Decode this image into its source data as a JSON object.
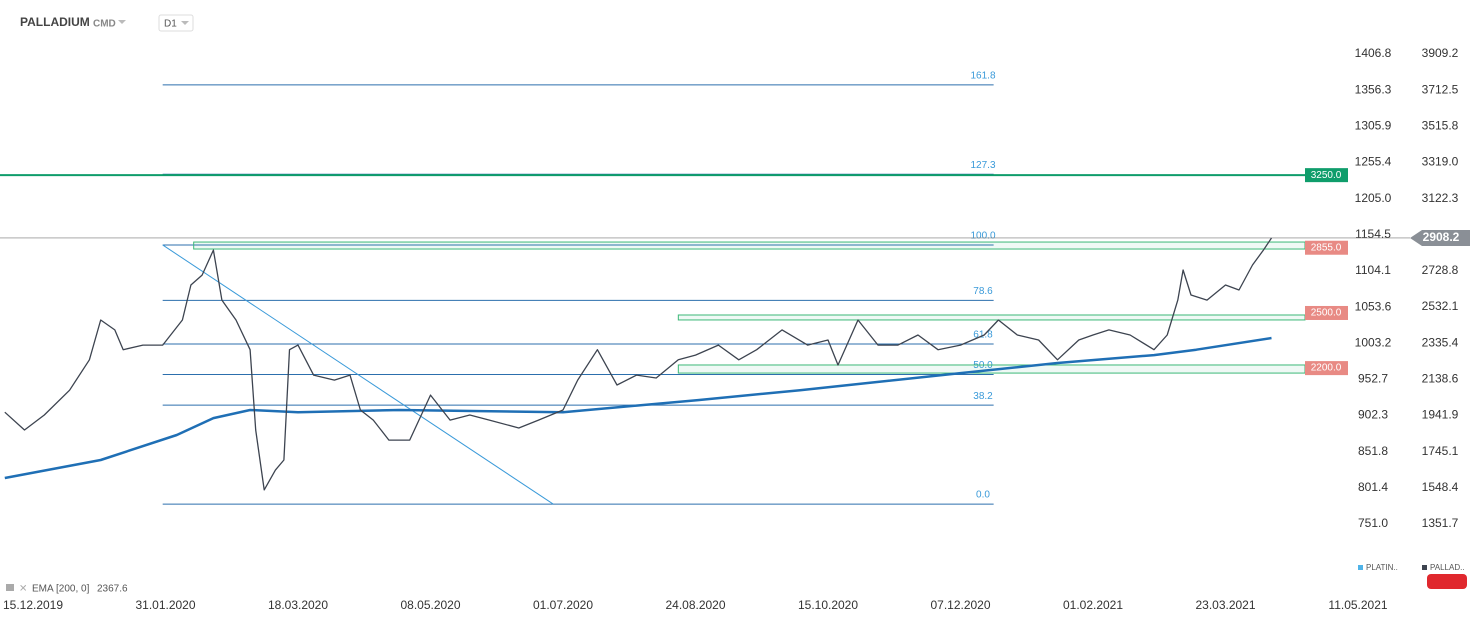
{
  "header": {
    "symbol": "PALLADIUM",
    "market": "CMD",
    "timeframe": "D1"
  },
  "chart_data": {
    "type": "line",
    "x": [
      "2019-12-05",
      "2019-12-12",
      "2019-12-19",
      "2019-12-28",
      "2020-01-04",
      "2020-01-08",
      "2020-01-13",
      "2020-01-16",
      "2020-01-23",
      "2020-01-30",
      "2020-02-06",
      "2020-02-09",
      "2020-02-13",
      "2020-02-17",
      "2020-02-20",
      "2020-02-25",
      "2020-03-01",
      "2020-03-03",
      "2020-03-06",
      "2020-03-10",
      "2020-03-13",
      "2020-03-15",
      "2020-03-18",
      "2020-03-24",
      "2020-04-01",
      "2020-04-07",
      "2020-04-11",
      "2020-04-16",
      "2020-04-22",
      "2020-04-30",
      "2020-05-08",
      "2020-05-16",
      "2020-05-24",
      "2020-06-01",
      "2020-06-13",
      "2020-06-21",
      "2020-07-01",
      "2020-07-07",
      "2020-07-15",
      "2020-07-23",
      "2020-07-31",
      "2020-08-08",
      "2020-08-17",
      "2020-08-24",
      "2020-09-02",
      "2020-09-10",
      "2020-09-17",
      "2020-09-27",
      "2020-10-07",
      "2020-10-15",
      "2020-10-19",
      "2020-10-27",
      "2020-11-04",
      "2020-11-12",
      "2020-11-20",
      "2020-11-28",
      "2020-12-07",
      "2020-12-17",
      "2020-12-23",
      "2020-12-31",
      "2021-01-09",
      "2021-01-17",
      "2021-01-26",
      "2021-02-01",
      "2021-02-07",
      "2021-02-15",
      "2021-02-24",
      "2021-03-01",
      "2021-03-05",
      "2021-03-07",
      "2021-03-10",
      "2021-03-16",
      "2021-03-23",
      "2021-03-28",
      "2021-04-02",
      "2021-04-06",
      "2021-04-09"
    ],
    "series": [
      {
        "color": "#3d4450",
        "values": [
          1960,
          1863,
          1945,
          2080,
          2245,
          2462,
          2408,
          2300,
          2325,
          2325,
          2462,
          2652,
          2706,
          2842,
          2570,
          2462,
          2300,
          1863,
          1537,
          1645,
          1700,
          2300,
          2325,
          2162,
          2135,
          2162,
          1972,
          1917,
          1808,
          1808,
          2053,
          1917,
          1945,
          1917,
          1874,
          1917,
          1972,
          2135,
          2300,
          2108,
          2162,
          2146,
          2245,
          2271,
          2325,
          2245,
          2300,
          2408,
          2325,
          2353,
          2217,
          2462,
          2325,
          2325,
          2380,
          2300,
          2325,
          2380,
          2462,
          2380,
          2353,
          2245,
          2353,
          2380,
          2408,
          2380,
          2300,
          2380,
          2570,
          2734,
          2598,
          2570,
          2652,
          2625,
          2761,
          2842,
          2908.2
        ]
      }
    ],
    "indicator": {
      "name": "EMA",
      "params": "[200, 0]",
      "last": 2367.6,
      "color": "#1f6fb5",
      "x": [
        "2019-12-05",
        "2020-01-08",
        "2020-02-04",
        "2020-02-17",
        "2020-03-01",
        "2020-03-18",
        "2020-04-26",
        "2020-07-01",
        "2020-08-25",
        "2020-10-04",
        "2020-12-07",
        "2021-01-17",
        "2021-02-24",
        "2021-03-12",
        "2021-04-09"
      ],
      "values": [
        1602,
        1700,
        1836,
        1928,
        1972,
        1960,
        1972,
        1960,
        2026,
        2080,
        2173,
        2228,
        2271,
        2300,
        2364
      ]
    },
    "current_price": 2908.2,
    "levels": [
      {
        "value": 3250,
        "label": "3250.0",
        "color": "#0f9d6b"
      },
      {
        "value": 2855,
        "label": "2855.0",
        "color": "#e88a84",
        "zone": [
          2848,
          2886
        ],
        "zone_start": "2020-02-10"
      },
      {
        "value": 2500,
        "label": "2500.0",
        "color": "#e88a84",
        "zone": [
          2462,
          2489
        ],
        "zone_start": "2020-08-17"
      },
      {
        "value": 2200,
        "label": "2200.0",
        "color": "#e88a84",
        "zone": [
          2173,
          2217
        ],
        "zone_start": "2020-08-17"
      }
    ],
    "fibonacci": {
      "low": 1460,
      "high": 2870,
      "start": "2020-01-30",
      "end": "2020-12-21",
      "levels": [
        161.8,
        127.3,
        {
          "value": 100,
          "label": "100.0"
        },
        78.6,
        61.8,
        {
          "value": 50,
          "label": "50.0"
        },
        38.2,
        {
          "value": 0,
          "label": "0.0"
        }
      ]
    },
    "trendline": {
      "start": [
        "2020-01-30",
        2870
      ],
      "end": [
        "2020-06-27",
        1460
      ]
    },
    "ylim": [
      1351.7,
      3909.2
    ],
    "yticks": [
      3909.2,
      3712.5,
      3515.8,
      {
        "value": 3319.0,
        "label": "3319.0"
      },
      3122.3,
      2728.8,
      2532.1,
      2335.4,
      2138.6,
      1941.9,
      1745.1,
      1548.4,
      1351.7
    ],
    "y2lim": [
      751.0,
      1406.8
    ],
    "y2ticks": [
      1406.8,
      1356.3,
      1305.9,
      1255.4,
      {
        "value": 1205.0,
        "label": "1205.0"
      },
      1154.5,
      1104.1,
      1053.6,
      1003.2,
      952.7,
      902.3,
      851.8,
      801.4,
      {
        "value": 751.0,
        "label": "751.0"
      }
    ],
    "xticks": [
      {
        "value": "2019-12-15",
        "label": "15.12.2019"
      },
      {
        "value": "2020-01-31",
        "label": "31.01.2020"
      },
      {
        "value": "2020-03-18",
        "label": "18.03.2020"
      },
      {
        "value": "2020-05-08",
        "label": "08.05.2020"
      },
      {
        "value": "2020-07-01",
        "label": "01.07.2020"
      },
      {
        "value": "2020-08-24",
        "label": "24.08.2020"
      },
      {
        "value": "2020-10-15",
        "label": "15.10.2020"
      },
      {
        "value": "2020-12-07",
        "label": "07.12.2020"
      },
      {
        "value": "2021-02-01",
        "label": "01.02.2021"
      },
      {
        "value": "2021-03-23",
        "label": "23.03.2021"
      },
      {
        "value": "2021-05-11",
        "label": "11.05.2021"
      }
    ],
    "legend": [
      {
        "name": "PLATIN..",
        "color": "#4fb3e8"
      },
      {
        "name": "PALLAD..",
        "color": "#3d4450"
      }
    ]
  }
}
